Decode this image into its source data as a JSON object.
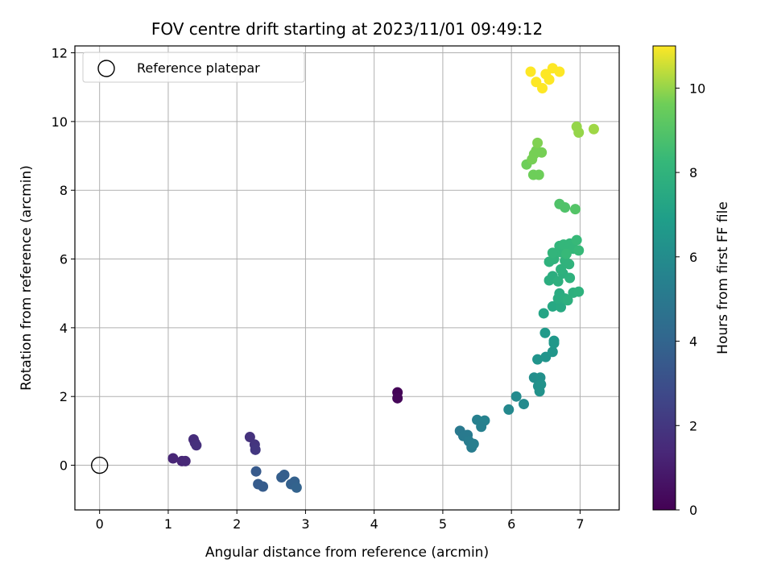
{
  "chart_data": {
    "type": "scatter",
    "title": "FOV centre drift starting at 2023/11/01 09:49:12",
    "xlabel": "Angular distance from reference (arcmin)",
    "ylabel": "Rotation from reference (arcmin)",
    "xlim": [
      -0.36,
      7.57
    ],
    "ylim": [
      -1.3,
      12.2
    ],
    "xticks": [
      0,
      1,
      2,
      3,
      4,
      5,
      6,
      7
    ],
    "yticks": [
      0,
      2,
      4,
      6,
      8,
      10,
      12
    ],
    "grid": true,
    "legend": {
      "position": "top-left",
      "entries": [
        "Reference platepar"
      ]
    },
    "reference_point": {
      "x": 0,
      "y": 0,
      "label": "Reference platepar"
    },
    "colorbar": {
      "label": "Hours from first FF file",
      "colormap": "viridis",
      "range": [
        0,
        11
      ],
      "ticks": [
        0,
        2,
        4,
        6,
        8,
        10
      ]
    },
    "series": [
      {
        "points": [
          {
            "x": 4.34,
            "y": 2.12,
            "c": 0.1
          },
          {
            "x": 4.34,
            "y": 1.95,
            "c": 0.2
          },
          {
            "x": 1.07,
            "y": 0.2,
            "c": 1.3
          },
          {
            "x": 1.2,
            "y": 0.12,
            "c": 1.3
          },
          {
            "x": 1.25,
            "y": 0.12,
            "c": 1.4
          },
          {
            "x": 1.37,
            "y": 0.75,
            "c": 1.6
          },
          {
            "x": 1.39,
            "y": 0.65,
            "c": 1.6
          },
          {
            "x": 1.41,
            "y": 0.58,
            "c": 1.7
          },
          {
            "x": 2.19,
            "y": 0.82,
            "c": 1.8
          },
          {
            "x": 2.26,
            "y": 0.6,
            "c": 1.9
          },
          {
            "x": 2.27,
            "y": 0.45,
            "c": 2.0
          },
          {
            "x": 2.28,
            "y": -0.18,
            "c": 3.5
          },
          {
            "x": 2.31,
            "y": -0.55,
            "c": 3.6
          },
          {
            "x": 2.38,
            "y": -0.62,
            "c": 3.6
          },
          {
            "x": 2.65,
            "y": -0.35,
            "c": 3.7
          },
          {
            "x": 2.69,
            "y": -0.28,
            "c": 3.7
          },
          {
            "x": 2.79,
            "y": -0.55,
            "c": 3.8
          },
          {
            "x": 2.84,
            "y": -0.48,
            "c": 3.8
          },
          {
            "x": 2.87,
            "y": -0.65,
            "c": 3.9
          },
          {
            "x": 5.25,
            "y": 1.0,
            "c": 5.0
          },
          {
            "x": 5.3,
            "y": 0.85,
            "c": 5.1
          },
          {
            "x": 5.36,
            "y": 0.88,
            "c": 5.1
          },
          {
            "x": 5.38,
            "y": 0.7,
            "c": 5.2
          },
          {
            "x": 5.42,
            "y": 0.52,
            "c": 5.2
          },
          {
            "x": 5.45,
            "y": 0.62,
            "c": 5.3
          },
          {
            "x": 5.5,
            "y": 1.32,
            "c": 5.4
          },
          {
            "x": 5.56,
            "y": 1.25,
            "c": 5.4
          },
          {
            "x": 5.61,
            "y": 1.3,
            "c": 5.5
          },
          {
            "x": 5.56,
            "y": 1.12,
            "c": 5.4
          },
          {
            "x": 5.96,
            "y": 1.62,
            "c": 5.8
          },
          {
            "x": 6.07,
            "y": 2.0,
            "c": 5.9
          },
          {
            "x": 6.18,
            "y": 1.78,
            "c": 5.9
          },
          {
            "x": 6.33,
            "y": 2.55,
            "c": 6.1
          },
          {
            "x": 6.39,
            "y": 2.3,
            "c": 6.2
          },
          {
            "x": 6.42,
            "y": 2.55,
            "c": 6.2
          },
          {
            "x": 6.41,
            "y": 2.15,
            "c": 6.3
          },
          {
            "x": 6.43,
            "y": 2.35,
            "c": 6.3
          },
          {
            "x": 6.38,
            "y": 3.08,
            "c": 6.4
          },
          {
            "x": 6.5,
            "y": 3.15,
            "c": 6.4
          },
          {
            "x": 6.6,
            "y": 3.3,
            "c": 6.5
          },
          {
            "x": 6.62,
            "y": 3.55,
            "c": 6.6
          },
          {
            "x": 6.62,
            "y": 3.62,
            "c": 6.6
          },
          {
            "x": 6.49,
            "y": 3.85,
            "c": 6.7
          },
          {
            "x": 6.47,
            "y": 4.42,
            "c": 7.2
          },
          {
            "x": 6.6,
            "y": 4.62,
            "c": 7.4
          },
          {
            "x": 6.72,
            "y": 4.6,
            "c": 7.5
          },
          {
            "x": 6.68,
            "y": 4.85,
            "c": 7.6
          },
          {
            "x": 6.7,
            "y": 5.0,
            "c": 7.6
          },
          {
            "x": 6.78,
            "y": 4.85,
            "c": 7.7
          },
          {
            "x": 6.82,
            "y": 4.8,
            "c": 7.8
          },
          {
            "x": 6.9,
            "y": 5.02,
            "c": 7.8
          },
          {
            "x": 6.98,
            "y": 5.05,
            "c": 7.9
          },
          {
            "x": 6.55,
            "y": 5.38,
            "c": 7.7
          },
          {
            "x": 6.6,
            "y": 5.5,
            "c": 7.7
          },
          {
            "x": 6.68,
            "y": 5.35,
            "c": 7.8
          },
          {
            "x": 6.75,
            "y": 5.58,
            "c": 7.8
          },
          {
            "x": 6.85,
            "y": 5.45,
            "c": 7.9
          },
          {
            "x": 6.72,
            "y": 5.7,
            "c": 7.9
          },
          {
            "x": 6.55,
            "y": 5.92,
            "c": 7.9
          },
          {
            "x": 6.62,
            "y": 6.0,
            "c": 8.0
          },
          {
            "x": 6.78,
            "y": 5.95,
            "c": 8.0
          },
          {
            "x": 6.84,
            "y": 5.85,
            "c": 8.0
          },
          {
            "x": 6.72,
            "y": 6.2,
            "c": 8.1
          },
          {
            "x": 6.6,
            "y": 6.18,
            "c": 8.1
          },
          {
            "x": 6.7,
            "y": 6.38,
            "c": 8.1
          },
          {
            "x": 6.76,
            "y": 6.42,
            "c": 8.2
          },
          {
            "x": 6.82,
            "y": 6.3,
            "c": 8.2
          },
          {
            "x": 6.85,
            "y": 6.45,
            "c": 8.2
          },
          {
            "x": 6.9,
            "y": 6.3,
            "c": 8.2
          },
          {
            "x": 6.95,
            "y": 6.55,
            "c": 8.3
          },
          {
            "x": 6.98,
            "y": 6.25,
            "c": 8.3
          },
          {
            "x": 6.8,
            "y": 6.15,
            "c": 8.3
          },
          {
            "x": 6.7,
            "y": 7.6,
            "c": 8.9
          },
          {
            "x": 6.78,
            "y": 7.5,
            "c": 8.9
          },
          {
            "x": 6.93,
            "y": 7.45,
            "c": 9.0
          },
          {
            "x": 6.22,
            "y": 8.75,
            "c": 9.6
          },
          {
            "x": 6.32,
            "y": 8.45,
            "c": 9.6
          },
          {
            "x": 6.4,
            "y": 8.45,
            "c": 9.6
          },
          {
            "x": 6.3,
            "y": 8.9,
            "c": 9.7
          },
          {
            "x": 6.33,
            "y": 9.05,
            "c": 9.7
          },
          {
            "x": 6.36,
            "y": 9.15,
            "c": 9.7
          },
          {
            "x": 6.38,
            "y": 9.38,
            "c": 9.8
          },
          {
            "x": 6.44,
            "y": 9.1,
            "c": 9.7
          },
          {
            "x": 6.95,
            "y": 9.85,
            "c": 10.0
          },
          {
            "x": 6.98,
            "y": 9.68,
            "c": 10.0
          },
          {
            "x": 7.2,
            "y": 9.78,
            "c": 10.1
          },
          {
            "x": 6.28,
            "y": 11.45,
            "c": 11.0
          },
          {
            "x": 6.36,
            "y": 11.15,
            "c": 11.0
          },
          {
            "x": 6.45,
            "y": 10.97,
            "c": 11.0
          },
          {
            "x": 6.5,
            "y": 11.38,
            "c": 11.0
          },
          {
            "x": 6.55,
            "y": 11.22,
            "c": 11.0
          },
          {
            "x": 6.6,
            "y": 11.55,
            "c": 11.0
          },
          {
            "x": 6.7,
            "y": 11.45,
            "c": 11.0
          }
        ]
      }
    ]
  }
}
